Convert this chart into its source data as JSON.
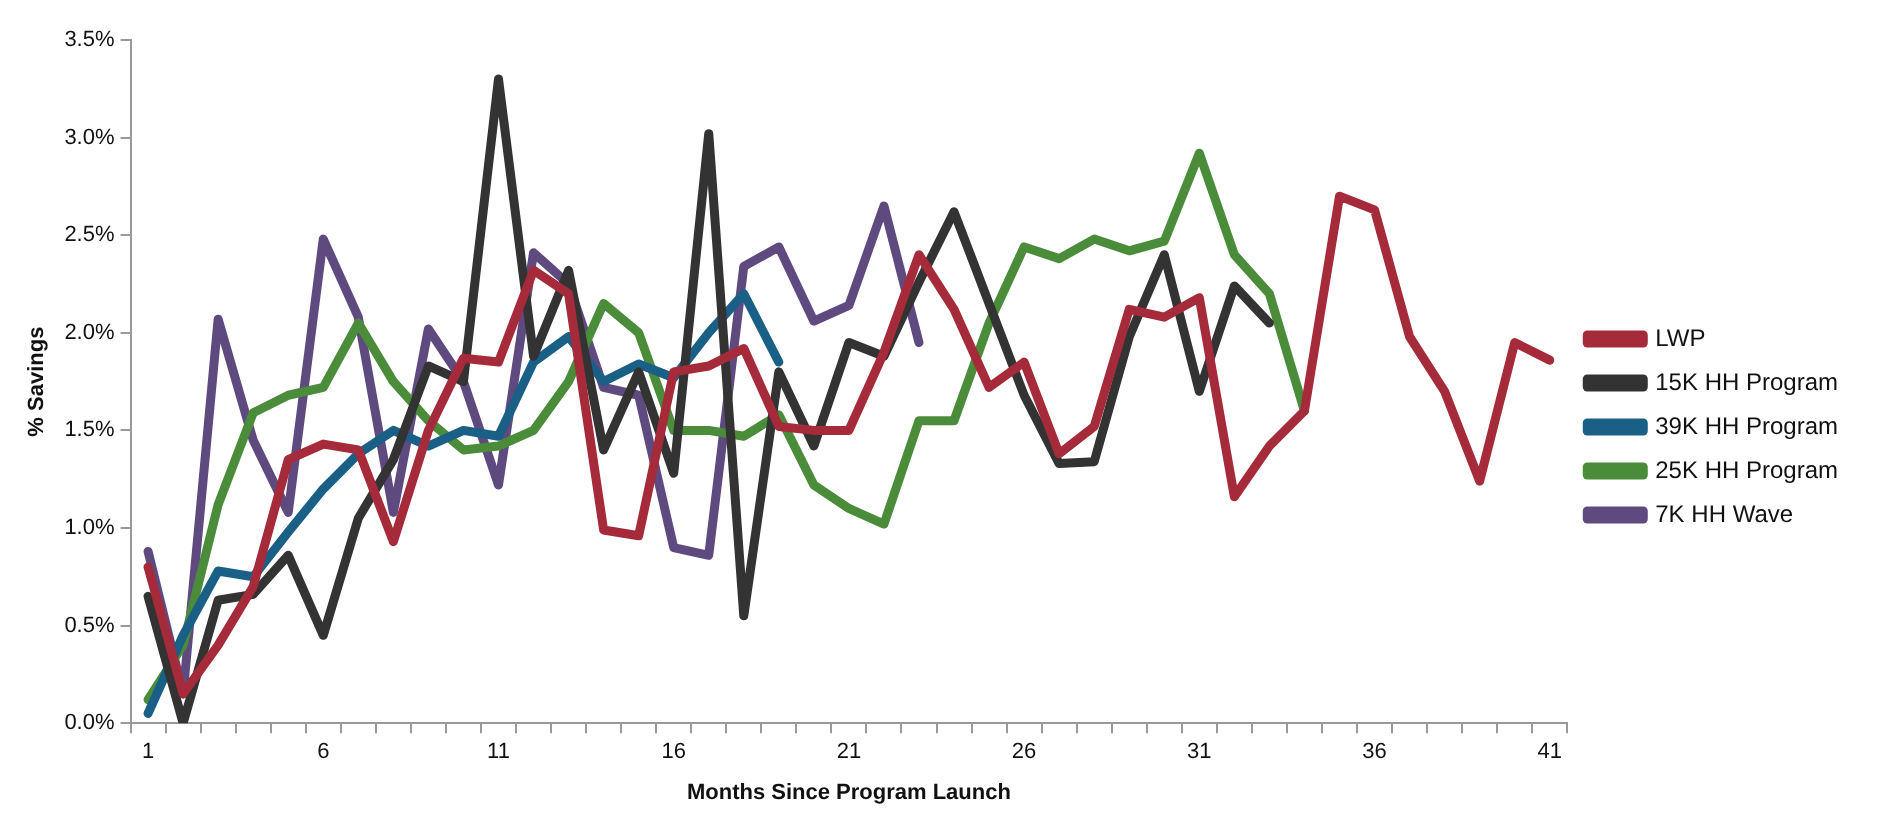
{
  "chart_data": {
    "type": "line",
    "xlabel": "Months Since Program Launch",
    "ylabel": "% Savings",
    "categories": [
      "1",
      null,
      null,
      null,
      null,
      "6",
      null,
      null,
      null,
      null,
      "11",
      null,
      null,
      null,
      null,
      "16",
      null,
      null,
      null,
      null,
      "21",
      null,
      null,
      null,
      null,
      "26",
      null,
      null,
      null,
      null,
      "31",
      null,
      null,
      null,
      null,
      "36",
      null,
      null,
      null,
      null,
      "41"
    ],
    "ylim": [
      0,
      3.5
    ],
    "yticks": [
      {
        "value": 0,
        "label": "0.0%"
      },
      {
        "value": 0.5,
        "label": "0.5%"
      },
      {
        "value": 1,
        "label": "1.0%"
      },
      {
        "value": 1.5,
        "label": "1.5%"
      },
      {
        "value": 2,
        "label": "2.0%"
      },
      {
        "value": 2.5,
        "label": "2.5%"
      },
      {
        "value": 3,
        "label": "3.0%"
      },
      {
        "value": 3.5,
        "label": "3.5%"
      }
    ],
    "grid": false,
    "legend": "right",
    "marker": "none",
    "line_style": "solid",
    "series": [
      {
        "name": "LWP",
        "color": "#a52a3a",
        "values": [
          0.8,
          0.15,
          0.4,
          0.7,
          1.35,
          1.43,
          1.4,
          0.93,
          1.5,
          1.87,
          1.85,
          2.32,
          2.2,
          0.99,
          0.96,
          1.8,
          1.83,
          1.92,
          1.52,
          1.5,
          1.5,
          1.9,
          2.4,
          2.12,
          1.72,
          1.85,
          1.38,
          1.52,
          2.12,
          2.08,
          2.18,
          1.16,
          1.42,
          1.6,
          2.7,
          2.63,
          1.98,
          1.7,
          1.24,
          1.95,
          1.86
        ]
      },
      {
        "name": "15K HH Program",
        "color": "#333333",
        "values": [
          0.65,
          0.0,
          0.63,
          0.66,
          0.86,
          0.45,
          1.05,
          1.35,
          1.83,
          1.75,
          3.3,
          1.88,
          2.32,
          1.4,
          1.8,
          1.28,
          3.02,
          0.55,
          1.8,
          1.42,
          1.95,
          1.88,
          2.26,
          2.62,
          2.15,
          1.68,
          1.33,
          1.34,
          1.98,
          2.4,
          1.7,
          2.24,
          2.05,
          null,
          null,
          null,
          null,
          null,
          null,
          null,
          null
        ]
      },
      {
        "name": "39K HH Program",
        "color": "#1a5f86",
        "values": [
          0.05,
          0.45,
          0.78,
          0.75,
          0.98,
          1.2,
          1.38,
          1.5,
          1.42,
          1.5,
          1.47,
          1.85,
          1.98,
          1.75,
          1.84,
          1.77,
          2.0,
          2.2,
          1.85,
          null,
          null,
          null,
          null,
          null,
          null,
          null,
          null,
          null,
          null,
          null,
          null,
          null,
          null,
          null,
          null,
          null,
          null,
          null,
          null,
          null,
          null
        ]
      },
      {
        "name": "25K HH Program",
        "color": "#4a8c3a",
        "values": [
          0.12,
          0.4,
          1.12,
          1.59,
          1.68,
          1.72,
          2.05,
          1.75,
          1.55,
          1.4,
          1.42,
          1.5,
          1.75,
          2.15,
          2.0,
          1.5,
          1.5,
          1.47,
          1.58,
          1.22,
          1.1,
          1.02,
          1.55,
          1.55,
          2.05,
          2.44,
          2.38,
          2.48,
          2.42,
          2.47,
          2.92,
          2.4,
          2.2,
          1.6,
          null,
          null,
          null,
          null,
          null,
          null,
          null
        ]
      },
      {
        "name": "7K HH Wave",
        "color": "#5f4a80",
        "values": [
          0.88,
          0.15,
          2.07,
          1.45,
          1.08,
          2.48,
          2.08,
          1.08,
          2.02,
          1.75,
          1.22,
          2.41,
          2.25,
          1.72,
          1.68,
          0.9,
          0.86,
          2.34,
          2.44,
          2.06,
          2.14,
          2.65,
          1.95,
          null,
          null,
          null,
          null,
          null,
          null,
          null,
          null,
          null,
          null,
          null,
          null,
          null,
          null,
          null,
          null,
          null,
          null
        ]
      }
    ]
  }
}
